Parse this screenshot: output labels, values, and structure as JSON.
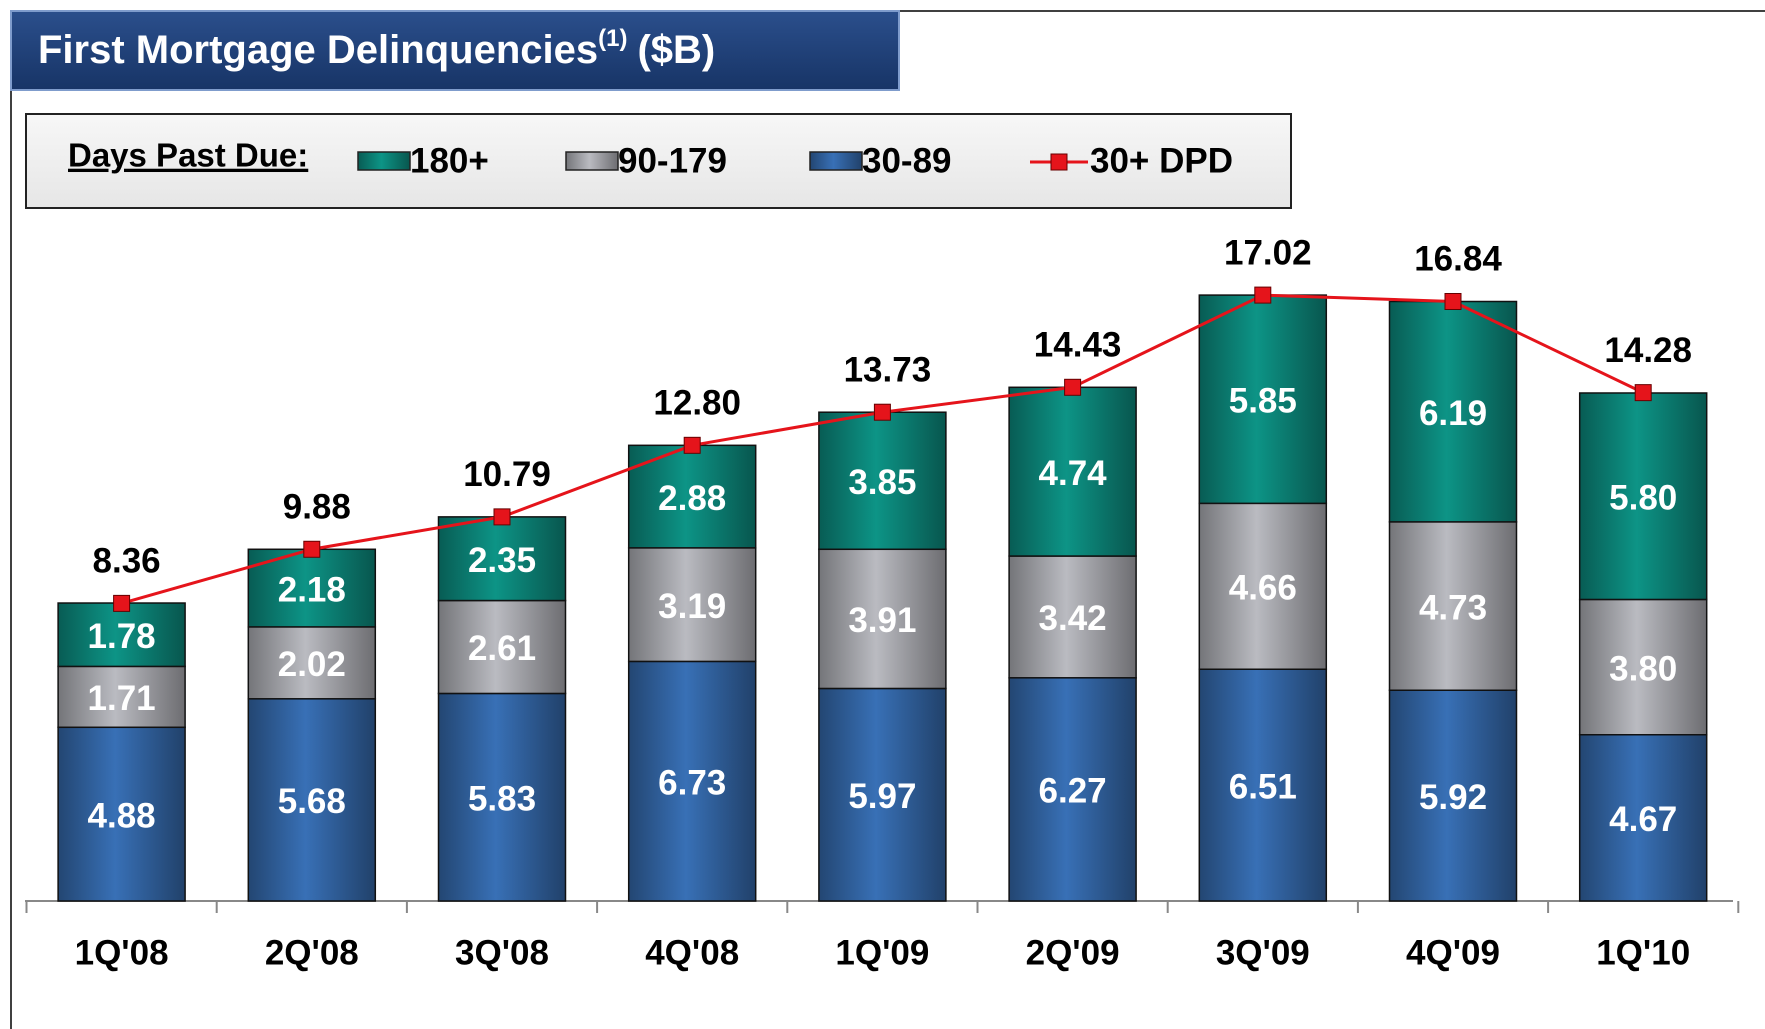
{
  "chart_data": {
    "type": "stacked-bar-line",
    "title": "First Mortgage Delinquencies",
    "title_note": "(1)",
    "title_unit": "($B)",
    "legend_title": "Days Past Due:",
    "categories": [
      "1Q'08",
      "2Q'08",
      "3Q'08",
      "4Q'08",
      "1Q'09",
      "2Q'09",
      "3Q'09",
      "4Q'09",
      "1Q'10"
    ],
    "series": [
      {
        "name": "180+",
        "color": "#0b7b70",
        "values": [
          1.78,
          2.18,
          2.35,
          2.88,
          3.85,
          4.74,
          5.85,
          6.19,
          5.8
        ],
        "value_labels": [
          "1.78",
          "2.18",
          "2.35",
          "2.88",
          "3.85",
          "4.74",
          "5.85",
          "6.19",
          "5.80"
        ]
      },
      {
        "name": "90-179",
        "color": "#9b9ca1",
        "values": [
          1.71,
          2.02,
          2.61,
          3.19,
          3.91,
          3.42,
          4.66,
          4.73,
          3.8
        ],
        "value_labels": [
          "1.71",
          "2.02",
          "2.61",
          "3.19",
          "3.91",
          "3.42",
          "4.66",
          "4.73",
          "3.80"
        ]
      },
      {
        "name": "30-89",
        "color": "#2f5d98",
        "values": [
          4.88,
          5.68,
          5.83,
          6.73,
          5.97,
          6.27,
          6.51,
          5.92,
          4.67
        ],
        "value_labels": [
          "4.88",
          "5.68",
          "5.83",
          "6.73",
          "5.97",
          "6.27",
          "6.51",
          "5.92",
          "4.67"
        ]
      }
    ],
    "line_series": {
      "name": "30+ DPD",
      "color": "#e5141b",
      "values": [
        8.36,
        9.88,
        10.79,
        12.8,
        13.73,
        14.43,
        17.02,
        16.84,
        14.28
      ],
      "value_labels": [
        "8.36",
        "9.88",
        "10.79",
        "12.80",
        "13.73",
        "14.43",
        "17.02",
        "16.84",
        "14.28"
      ]
    }
  }
}
